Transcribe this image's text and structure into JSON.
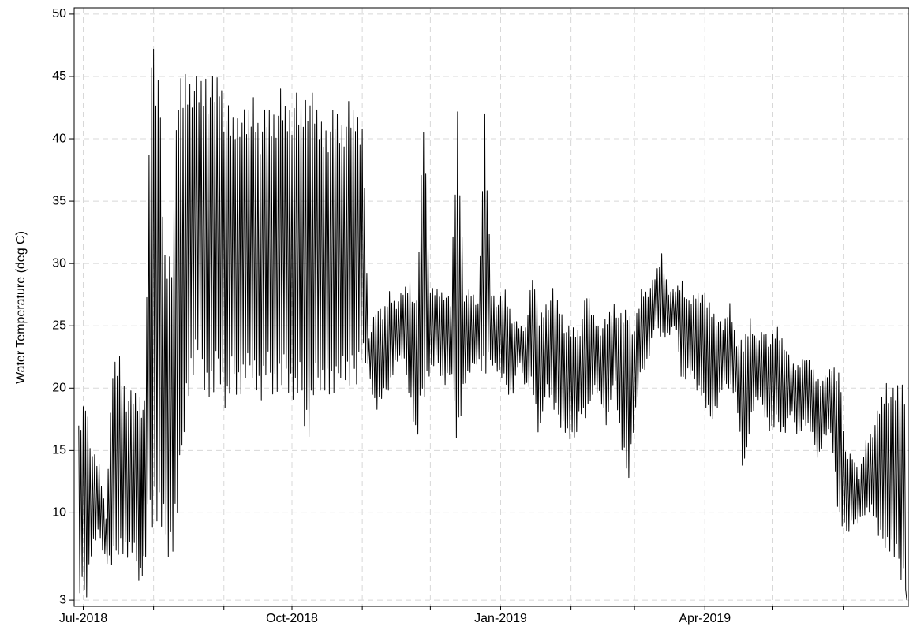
{
  "chart_data": {
    "type": "line",
    "title": "",
    "xlabel": "",
    "ylabel": "Water Temperature (deg C)",
    "xlim": [
      "2018-06-27",
      "2019-06-30"
    ],
    "ylim": [
      2.5,
      50.5
    ],
    "yticks": [
      3,
      10,
      15,
      20,
      25,
      30,
      35,
      40,
      45,
      50
    ],
    "xticks": [
      {
        "date": "2018-07-01",
        "label": "Jul-2018"
      },
      {
        "date": "2018-10-01",
        "label": "Oct-2018"
      },
      {
        "date": "2019-01-01",
        "label": "Jan-2019"
      },
      {
        "date": "2019-04-01",
        "label": "Apr-2019"
      }
    ],
    "grid": true,
    "series": [
      {
        "color": "#000000",
        "description": "daily envelope (min/max) of sub-daily readings",
        "x": [
          "2018-06-29",
          "2018-07-02",
          "2018-07-05",
          "2018-07-08",
          "2018-07-11",
          "2018-07-14",
          "2018-07-17",
          "2018-07-20",
          "2018-07-23",
          "2018-07-26",
          "2018-07-28",
          "2018-07-31",
          "2018-08-03",
          "2018-08-06",
          "2018-08-09",
          "2018-08-12",
          "2018-08-15",
          "2018-08-18",
          "2018-08-21",
          "2018-08-24",
          "2018-08-27",
          "2018-08-30",
          "2018-09-02",
          "2018-09-05",
          "2018-09-08",
          "2018-09-11",
          "2018-09-14",
          "2018-09-17",
          "2018-09-20",
          "2018-09-23",
          "2018-09-26",
          "2018-09-29",
          "2018-10-02",
          "2018-10-05",
          "2018-10-08",
          "2018-10-11",
          "2018-10-14",
          "2018-10-17",
          "2018-10-20",
          "2018-10-23",
          "2018-10-26",
          "2018-10-29",
          "2018-11-01",
          "2018-11-04",
          "2018-11-07",
          "2018-11-10",
          "2018-11-13",
          "2018-11-16",
          "2018-11-19",
          "2018-11-22",
          "2018-11-25",
          "2018-11-28",
          "2018-12-01",
          "2018-12-04",
          "2018-12-07",
          "2018-12-10",
          "2018-12-13",
          "2018-12-16",
          "2018-12-19",
          "2018-12-22",
          "2018-12-25",
          "2018-12-28",
          "2018-12-31",
          "2019-01-03",
          "2019-01-06",
          "2019-01-09",
          "2019-01-12",
          "2019-01-15",
          "2019-01-18",
          "2019-01-21",
          "2019-01-24",
          "2019-01-27",
          "2019-01-30",
          "2019-02-02",
          "2019-02-05",
          "2019-02-08",
          "2019-02-11",
          "2019-02-14",
          "2019-02-17",
          "2019-02-20",
          "2019-02-23",
          "2019-02-26",
          "2019-03-01",
          "2019-03-04",
          "2019-03-07",
          "2019-03-10",
          "2019-03-13",
          "2019-03-16",
          "2019-03-19",
          "2019-03-22",
          "2019-03-25",
          "2019-03-28",
          "2019-03-31",
          "2019-04-03",
          "2019-04-06",
          "2019-04-09",
          "2019-04-12",
          "2019-04-15",
          "2019-04-18",
          "2019-04-21",
          "2019-04-24",
          "2019-04-27",
          "2019-04-30",
          "2019-05-03",
          "2019-05-06",
          "2019-05-09",
          "2019-05-12",
          "2019-05-15",
          "2019-05-18",
          "2019-05-21",
          "2019-05-24",
          "2019-05-27",
          "2019-05-30",
          "2019-06-02",
          "2019-06-05",
          "2019-06-08",
          "2019-06-11",
          "2019-06-14",
          "2019-06-17",
          "2019-06-20",
          "2019-06-23",
          "2019-06-26",
          "2019-06-29"
        ],
        "low": [
          3,
          2.5,
          7,
          8,
          6,
          5,
          7,
          6,
          6,
          4,
          5,
          9,
          8,
          7,
          6,
          9,
          18,
          20,
          22,
          19,
          18,
          21,
          17,
          20,
          19,
          20,
          21,
          18,
          20,
          19,
          19,
          20,
          18,
          19,
          15,
          19,
          20,
          19,
          18,
          21,
          19,
          20,
          22,
          21,
          18,
          19,
          20,
          22,
          22,
          19,
          15,
          19,
          21,
          22,
          20,
          21,
          15,
          20,
          21,
          22,
          20,
          22,
          21,
          20,
          19,
          22,
          20,
          20,
          15,
          20,
          18,
          17,
          16,
          15,
          18,
          17,
          20,
          19,
          16,
          21,
          15,
          12,
          17,
          21,
          22,
          25,
          24,
          24,
          25,
          20,
          21,
          20,
          19,
          17,
          18,
          20,
          20,
          19,
          12,
          17,
          19,
          18,
          16,
          17,
          16,
          18,
          16,
          17,
          16,
          14,
          16,
          16,
          9,
          8,
          9,
          9,
          10,
          10,
          7,
          7,
          6,
          5,
          3
        ],
        "high": [
          17,
          20,
          15,
          14,
          10,
          22,
          23,
          20,
          20,
          20,
          19,
          50,
          47,
          31,
          32,
          45,
          46,
          46,
          45,
          46,
          45,
          46,
          43,
          42,
          43,
          42,
          44,
          42,
          43,
          43,
          44,
          43,
          44,
          43,
          45,
          43,
          42,
          42,
          43,
          42,
          43,
          43,
          42,
          24,
          27,
          26,
          28,
          27,
          28,
          29,
          27,
          43,
          28,
          28,
          28,
          27,
          43,
          28,
          28,
          27,
          42,
          28,
          27,
          28,
          26,
          25,
          25,
          30,
          26,
          27,
          28,
          27,
          25,
          25,
          25,
          28,
          26,
          25,
          26,
          27,
          26,
          27,
          25,
          28,
          28,
          29,
          31,
          28,
          28,
          29,
          27,
          28,
          28,
          27,
          26,
          25,
          27,
          24,
          24,
          26,
          24,
          25,
          24,
          25,
          24,
          22,
          22,
          23,
          22,
          21,
          21,
          22,
          22,
          15,
          15,
          13,
          16,
          17,
          19,
          21,
          20,
          21,
          21
        ]
      }
    ]
  }
}
